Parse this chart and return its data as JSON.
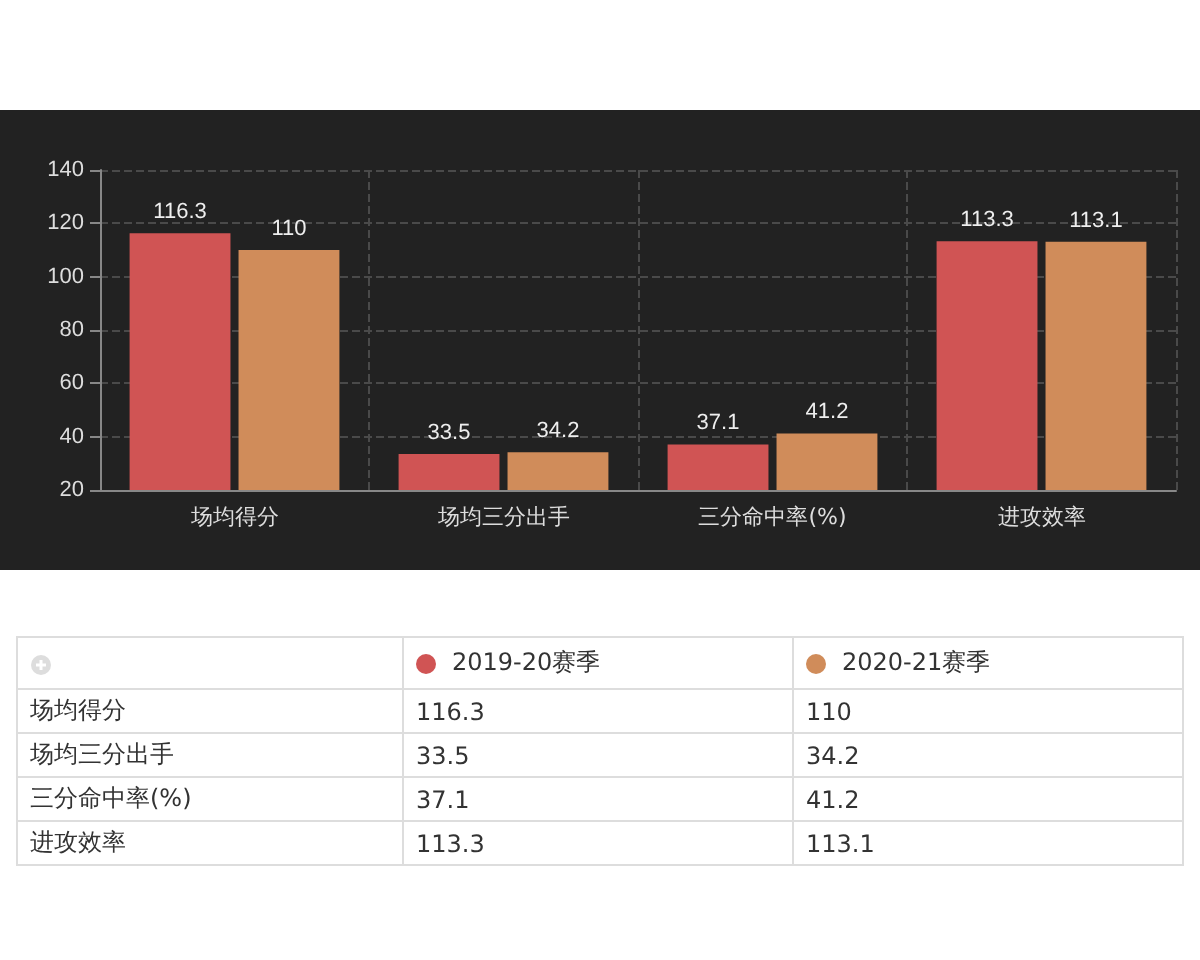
{
  "chart_data": [
    {
      "type": "bar",
      "categories": [
        "场均得分",
        "场均三分出手",
        "三分命中率(%)",
        "进攻效率"
      ],
      "series": [
        {
          "color": "#d05454",
          "values": [
            116.3,
            33.5,
            37.1,
            113.3
          ]
        },
        {
          "color": "#d08c5a",
          "values": [
            110,
            34.2,
            41.2,
            113.1
          ]
        }
      ],
      "ylim": [
        20,
        140
      ],
      "yticks": [
        20,
        40,
        60,
        80,
        100,
        120,
        140
      ],
      "grid": true,
      "data_labels": true
    },
    {
      "type": "other",
      "categories": [
        "场均得分",
        "场均三分出手",
        "三分命中率(%)",
        "进攻效率"
      ],
      "series": [
        {
          "name": "2019-20赛季",
          "color": "#d05454",
          "values": [
            116.3,
            33.5,
            37.1,
            113.3
          ]
        },
        {
          "name": "2020-21赛季",
          "color": "#d08c5a",
          "values": [
            110,
            34.2,
            41.2,
            113.1
          ]
        }
      ],
      "data_labels": true
    }
  ]
}
